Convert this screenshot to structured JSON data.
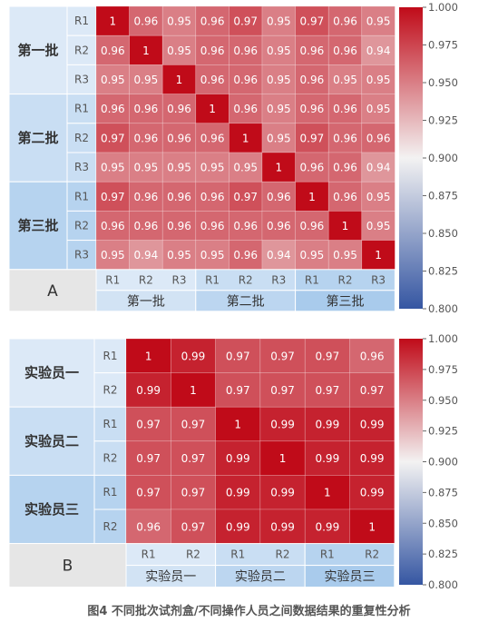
{
  "caption": "图4  不同批次试剂盒/不同操作人员之间数据结果的重复性分析",
  "colorbar": {
    "ticks": [
      "1.000",
      "0.975",
      "0.950",
      "0.925",
      "0.900",
      "0.875",
      "0.850",
      "0.825",
      "0.800"
    ],
    "colors": {
      "high": "#c00b19",
      "mid": "#f3f2f2",
      "low": "#3556a2"
    }
  },
  "chart_data": [
    {
      "type": "heatmap",
      "panel_label": "A",
      "range": [
        0.8,
        1.0
      ],
      "groups": [
        "第一批",
        "第二批",
        "第三批"
      ],
      "replicates": [
        "R1",
        "R2",
        "R3"
      ],
      "values": [
        [
          "1",
          "0.96",
          "0.95",
          "0.96",
          "0.97",
          "0.95",
          "0.97",
          "0.96",
          "0.95"
        ],
        [
          "0.96",
          "1",
          "0.95",
          "0.96",
          "0.96",
          "0.95",
          "0.96",
          "0.96",
          "0.94"
        ],
        [
          "0.95",
          "0.95",
          "1",
          "0.96",
          "0.96",
          "0.95",
          "0.96",
          "0.95",
          "0.95"
        ],
        [
          "0.96",
          "0.96",
          "0.96",
          "1",
          "0.96",
          "0.95",
          "0.96",
          "0.96",
          "0.95"
        ],
        [
          "0.97",
          "0.96",
          "0.96",
          "0.96",
          "1",
          "0.95",
          "0.97",
          "0.96",
          "0.96"
        ],
        [
          "0.95",
          "0.95",
          "0.95",
          "0.95",
          "0.95",
          "1",
          "0.96",
          "0.96",
          "0.94"
        ],
        [
          "0.97",
          "0.96",
          "0.96",
          "0.96",
          "0.97",
          "0.96",
          "1",
          "0.96",
          "0.95"
        ],
        [
          "0.96",
          "0.96",
          "0.96",
          "0.96",
          "0.96",
          "0.96",
          "0.96",
          "1",
          "0.95"
        ],
        [
          "0.95",
          "0.94",
          "0.95",
          "0.95",
          "0.96",
          "0.94",
          "0.95",
          "0.95",
          "1"
        ]
      ]
    },
    {
      "type": "heatmap",
      "panel_label": "B",
      "range": [
        0.8,
        1.0
      ],
      "groups": [
        "实验员一",
        "实验员二",
        "实验员三"
      ],
      "replicates": [
        "R1",
        "R2"
      ],
      "values": [
        [
          "1",
          "0.99",
          "0.97",
          "0.97",
          "0.97",
          "0.96"
        ],
        [
          "0.99",
          "1",
          "0.97",
          "0.97",
          "0.97",
          "0.97"
        ],
        [
          "0.97",
          "0.97",
          "1",
          "0.99",
          "0.99",
          "0.99"
        ],
        [
          "0.97",
          "0.97",
          "0.99",
          "1",
          "0.99",
          "0.99"
        ],
        [
          "0.97",
          "0.97",
          "0.99",
          "0.99",
          "1",
          "0.99"
        ],
        [
          "0.96",
          "0.97",
          "0.99",
          "0.99",
          "0.99",
          "1"
        ]
      ]
    }
  ]
}
